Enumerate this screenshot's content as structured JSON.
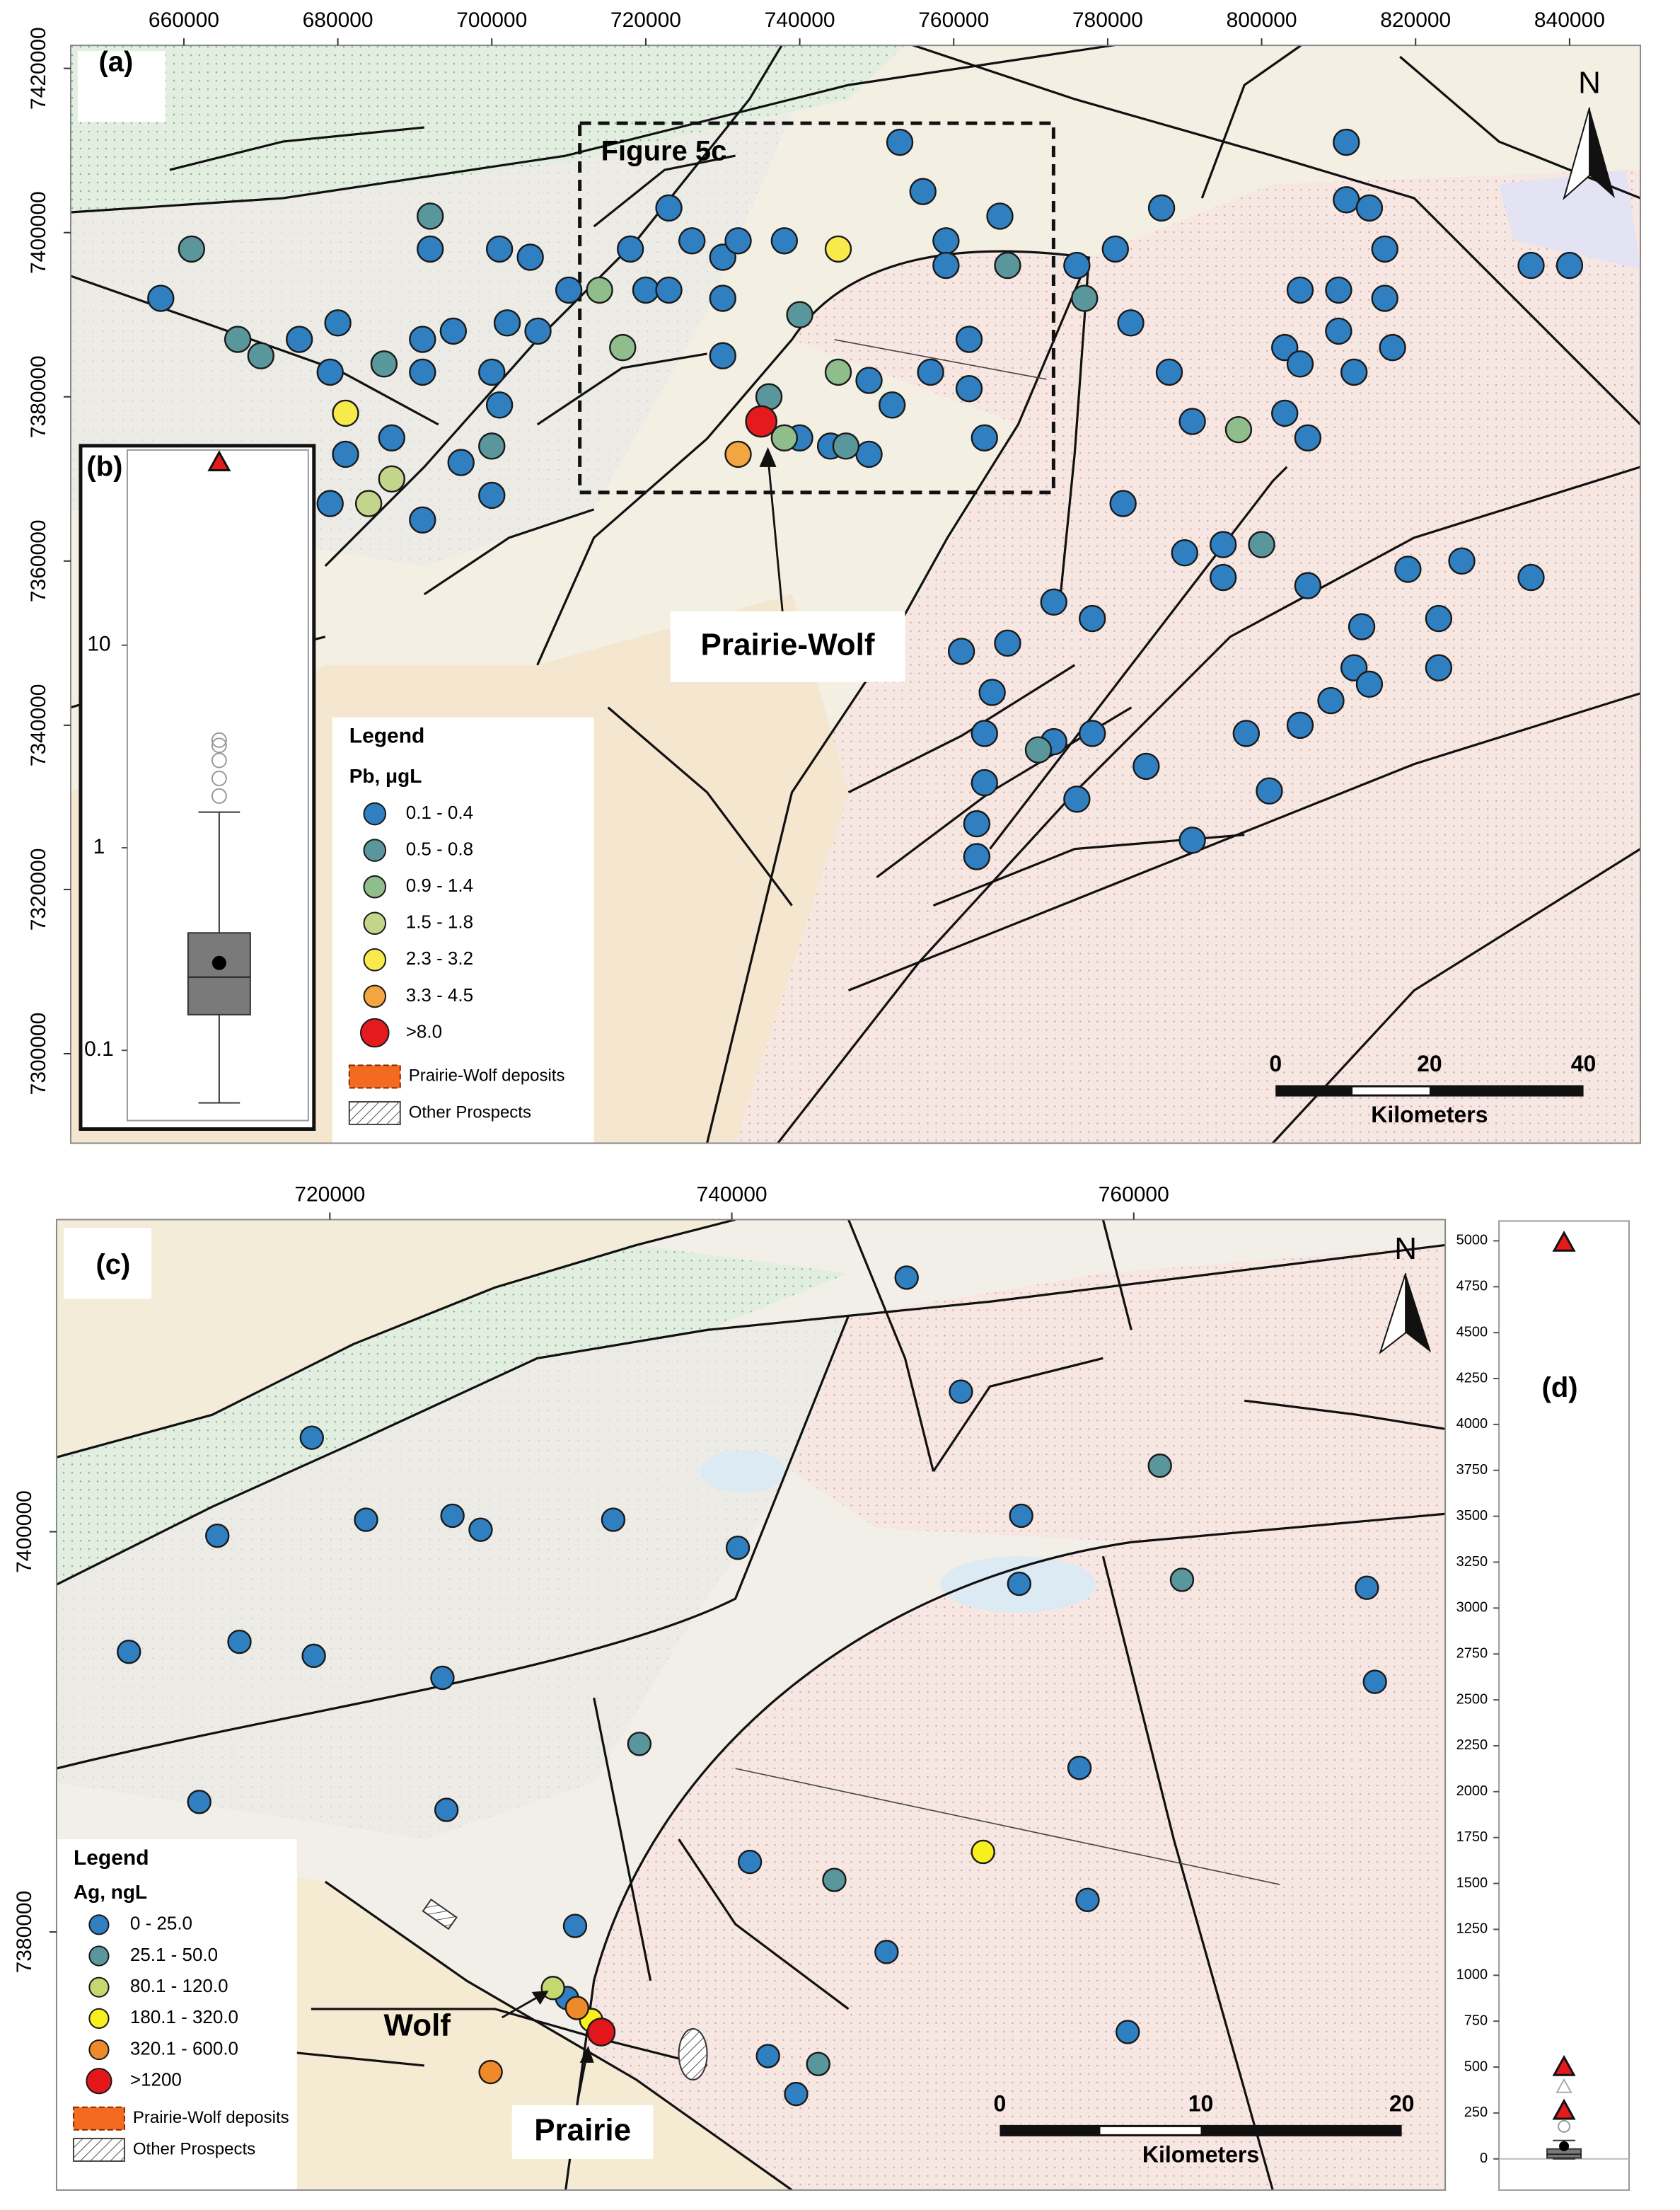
{
  "panel_a": {
    "label": "(a)",
    "inset_title": "Figure 5c",
    "callout": "Prairie-Wolf",
    "north": "N",
    "xlim": [
      645300,
      849200
    ],
    "ylim": [
      7289100,
      7422800
    ],
    "xticks": [
      660000,
      680000,
      700000,
      720000,
      740000,
      760000,
      780000,
      800000,
      820000,
      840000
    ],
    "yticks": [
      7300000,
      7320000,
      7340000,
      7360000,
      7380000,
      7400000,
      7420000
    ],
    "scale_bar": {
      "ticks": [
        0,
        20,
        40
      ],
      "label": "Kilometers"
    },
    "legend": {
      "title": "Legend",
      "variable": "Pb, μgL",
      "classes": [
        {
          "label": "0.1 - 0.4",
          "color": "#2f7fc1"
        },
        {
          "label": "0.5 - 0.8",
          "color": "#5a979c"
        },
        {
          "label": "0.9 - 1.4",
          "color": "#8fbd8c"
        },
        {
          "label": "1.5 - 1.8",
          "color": "#c3d58a"
        },
        {
          "label": "2.3 - 3.2",
          "color": "#f7ea4a"
        },
        {
          "label": "3.3 - 4.5",
          "color": "#f2a541"
        },
        {
          "label": ">8.0",
          "color": "#e41a1c"
        }
      ],
      "deposits": "Prairie-Wolf deposits",
      "prospects": "Other Prospects"
    },
    "sample_x": [
      657000,
      680000,
      675000,
      679000,
      691000,
      691000,
      695000,
      700000,
      701000,
      692000,
      705000,
      710000,
      702000,
      706000,
      701000,
      696000,
      691000,
      700000,
      687000,
      679000,
      681000,
      718000,
      720000,
      723000,
      723000,
      726000,
      730000,
      730000,
      730000,
      732000,
      738000,
      753000,
      756000,
      759000,
      759000,
      766000,
      762000,
      757000,
      762000,
      752000,
      749000,
      764000,
      749000,
      776000,
      781000,
      783000,
      787000,
      788000,
      791000,
      811000,
      811000,
      814000,
      816000,
      805000,
      810000,
      816000,
      803000,
      810000,
      805000,
      812000,
      817000,
      803000,
      806000,
      782000,
      790000,
      795000,
      795000,
      806000,
      813000,
      819000,
      826000,
      835000,
      823000,
      823000,
      812000,
      814000,
      809000,
      805000,
      798000,
      778000,
      773000,
      767000,
      761000,
      765000,
      778000,
      773000,
      764000,
      764000,
      763000,
      763000,
      776000,
      785000,
      791000,
      801000,
      840000,
      835000,
      740000,
      744000,
      661000,
      692000,
      667000,
      670000,
      686000,
      700000,
      740000,
      736000,
      767000,
      777000,
      746000,
      771000,
      800000,
      714000,
      717000,
      745000,
      738000,
      797000,
      687000,
      684000,
      745000,
      681000,
      732000,
      735000
    ],
    "sample_y": [
      7392000,
      7389000,
      7387000,
      7383000,
      7387000,
      7383000,
      7388000,
      7383000,
      7398000,
      7398000,
      7397000,
      7393000,
      7389000,
      7388000,
      7379000,
      7372000,
      7365000,
      7368000,
      7375000,
      7367000,
      7373000,
      7398000,
      7393000,
      7393000,
      7403000,
      7399000,
      7392000,
      7397000,
      7385000,
      7399000,
      7399000,
      7411000,
      7405000,
      7399000,
      7396000,
      7402000,
      7387000,
      7383000,
      7381000,
      7379000,
      7382000,
      7375000,
      7373000,
      7396000,
      7398000,
      7389000,
      7403000,
      7383000,
      7377000,
      7411000,
      7404000,
      7403000,
      7398000,
      7393000,
      7393000,
      7392000,
      7386000,
      7388000,
      7384000,
      7383000,
      7386000,
      7378000,
      7375000,
      7367000,
      7361000,
      7362000,
      7358000,
      7357000,
      7352000,
      7359000,
      7360000,
      7358000,
      7353000,
      7347000,
      7347000,
      7345000,
      7343000,
      7340000,
      7339000,
      7353000,
      7355000,
      7350000,
      7349000,
      7344000,
      7339000,
      7338000,
      7339000,
      7333000,
      7328000,
      7324000,
      7331000,
      7335000,
      7326000,
      7332000,
      7396000,
      7396000,
      7375000,
      7374000,
      7398000,
      7402000,
      7387000,
      7385000,
      7384000,
      7374000,
      7390000,
      7380000,
      7396000,
      7392000,
      7374000,
      7337000,
      7362000,
      7393000,
      7386000,
      7383000,
      7375000,
      7376000,
      7370000,
      7367000,
      7398000,
      7378000,
      7373000,
      7377000
    ],
    "sample_class": [
      0,
      0,
      0,
      0,
      0,
      0,
      0,
      0,
      0,
      0,
      0,
      0,
      0,
      0,
      0,
      0,
      0,
      0,
      0,
      0,
      0,
      0,
      0,
      0,
      0,
      0,
      0,
      0,
      0,
      0,
      0,
      0,
      0,
      0,
      0,
      0,
      0,
      0,
      0,
      0,
      0,
      0,
      0,
      0,
      0,
      0,
      0,
      0,
      0,
      0,
      0,
      0,
      0,
      0,
      0,
      0,
      0,
      0,
      0,
      0,
      0,
      0,
      0,
      0,
      0,
      0,
      0,
      0,
      0,
      0,
      0,
      0,
      0,
      0,
      0,
      0,
      0,
      0,
      0,
      0,
      0,
      0,
      0,
      0,
      0,
      0,
      0,
      0,
      0,
      0,
      0,
      0,
      0,
      0,
      0,
      0,
      0,
      0,
      1,
      1,
      1,
      1,
      1,
      1,
      1,
      1,
      1,
      1,
      1,
      1,
      1,
      2,
      2,
      2,
      2,
      2,
      3,
      3,
      4,
      4,
      5,
      6
    ]
  },
  "panel_b": {
    "label": "(b)",
    "log": true,
    "ylim": [
      0.045,
      92
    ],
    "yticks": [
      0.1,
      1,
      10
    ],
    "whisker_low": 0.055,
    "q1": 0.15,
    "median": 0.23,
    "q3": 0.38,
    "whisker_high": 1.5,
    "mean": 0.27,
    "outliers": [
      1.8,
      2.2,
      2.7,
      3.2,
      3.4
    ],
    "extremes": [
      80
    ]
  },
  "panel_c": {
    "label": "(c)",
    "north": "N",
    "wolf": "Wolf",
    "prairie": "Prairie",
    "xlim": [
      706400,
      775500
    ],
    "ylim": [
      7367100,
      7415600
    ],
    "xticks": [
      720000,
      740000,
      760000
    ],
    "yticks": [
      7380000,
      7400000
    ],
    "scale_bar": {
      "ticks": [
        0,
        10,
        20
      ],
      "label": "Kilometers"
    },
    "legend": {
      "title": "Legend",
      "variable": "Ag, ngL",
      "classes": [
        {
          "label": "0 - 25.0",
          "color": "#2f7fc1"
        },
        {
          "label": "25.1 - 50.0",
          "color": "#5a979c"
        },
        {
          "label": "80.1 - 120.0",
          "color": "#c5d870"
        },
        {
          "label": "180.1 - 320.0",
          "color": "#f7f01e"
        },
        {
          "label": "320.1 - 600.0",
          "color": "#ef8a2a"
        },
        {
          "label": ">1200",
          "color": "#e3161b"
        }
      ],
      "deposits": "Prairie-Wolf deposits",
      "prospects": "Other Prospects"
    },
    "sample_x": [
      719100,
      714400,
      721800,
      726100,
      727500,
      734100,
      740300,
      748700,
      751400,
      754400,
      754300,
      771600,
      710000,
      715500,
      719200,
      725600,
      725800,
      713500,
      772000,
      757300,
      740900,
      757700,
      747700,
      732200,
      759700,
      741800,
      743200,
      731800,
      761300,
      762400,
      735400,
      745100,
      744300,
      731100,
      752500,
      733000,
      732300,
      728000,
      733500
    ],
    "sample_y": [
      7404700,
      7399800,
      7400600,
      7400800,
      7400100,
      7400600,
      7399200,
      7412700,
      7407000,
      7400800,
      7397400,
      7397200,
      7394000,
      7394500,
      7393800,
      7392700,
      7386100,
      7386500,
      7392500,
      7388200,
      7383500,
      7381600,
      7379000,
      7380300,
      7375000,
      7373800,
      7371900,
      7376700,
      7403300,
      7397600,
      7389400,
      7382600,
      7373400,
      7377200,
      7384000,
      7375600,
      7376200,
      7373000,
      7375000
    ],
    "sample_class": [
      0,
      0,
      0,
      0,
      0,
      0,
      0,
      0,
      0,
      0,
      0,
      0,
      0,
      0,
      0,
      0,
      0,
      0,
      0,
      0,
      0,
      0,
      0,
      0,
      0,
      0,
      0,
      0,
      1,
      1,
      1,
      1,
      1,
      2,
      3,
      3,
      4,
      4,
      5
    ]
  },
  "panel_d": {
    "label": "(d)",
    "ylim": [
      -170,
      5108
    ],
    "yticks": [
      0,
      250,
      500,
      750,
      1000,
      1250,
      1500,
      1750,
      2000,
      2250,
      2500,
      2750,
      3000,
      3250,
      3500,
      3750,
      4000,
      4250,
      4500,
      4750,
      5000
    ],
    "whisker_low": 0,
    "q1": 5,
    "median": 25,
    "q3": 54,
    "whisker_high": 100,
    "mean": 69,
    "outliers": [
      177
    ],
    "extremes_gray": [
      393
    ],
    "extremes": [
      262,
      500,
      4990
    ]
  }
}
